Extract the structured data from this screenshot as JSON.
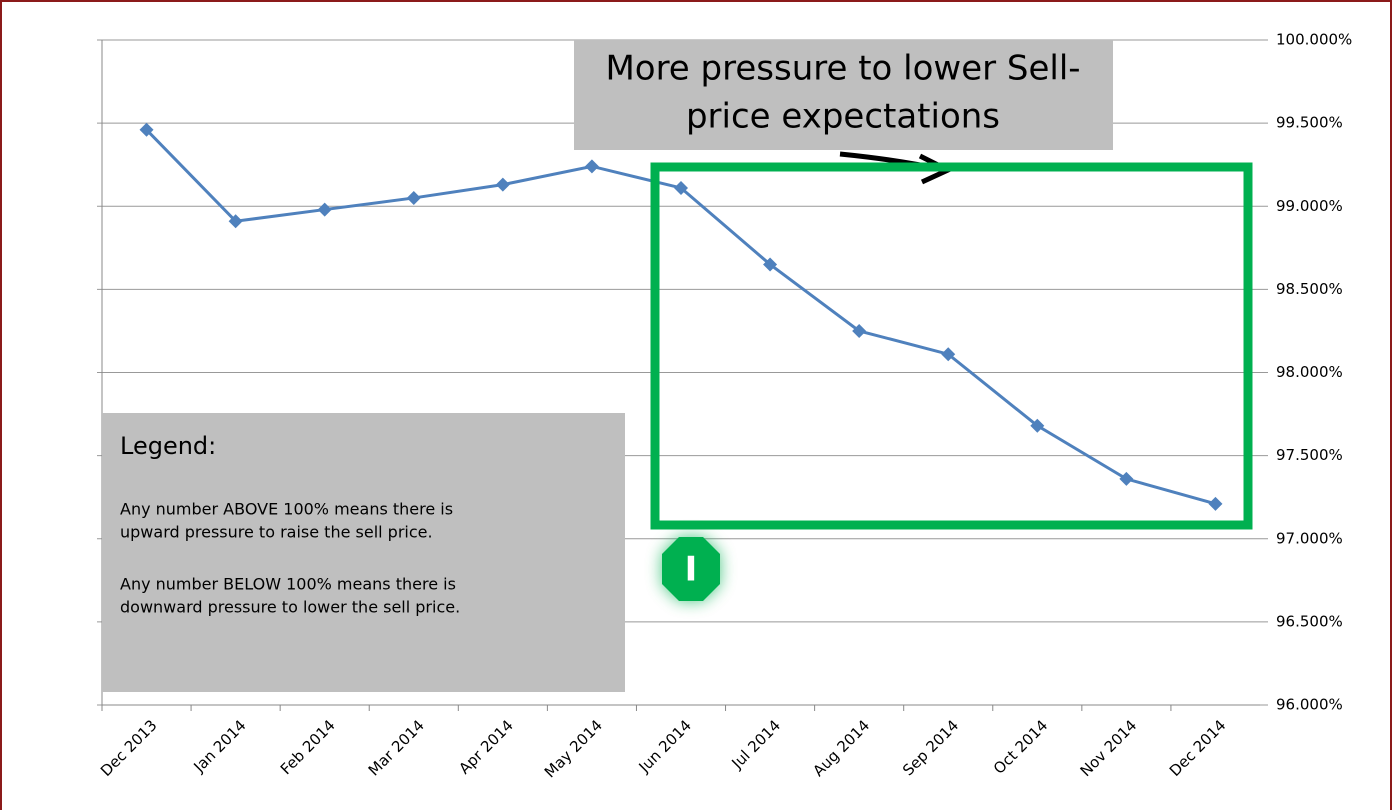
{
  "chart_data": {
    "type": "line",
    "categories": [
      "Dec 2013",
      "Jan 2014",
      "Feb 2014",
      "Mar 2014",
      "Apr 2014",
      "May 2014",
      "Jun 2014",
      "Jul 2014",
      "Aug 2014",
      "Sep 2014",
      "Oct 2014",
      "Nov 2014",
      "Dec 2014"
    ],
    "series": [
      {
        "color": "#4f81bd",
        "values": [
          99.46,
          98.91,
          98.98,
          99.05,
          99.13,
          99.24,
          99.11,
          98.65,
          98.25,
          98.11,
          97.68,
          97.36,
          97.21
        ]
      }
    ],
    "ylim": [
      96,
      100
    ],
    "yticks": [
      {
        "value": 96,
        "label": "96.000%"
      },
      {
        "value": 96.5,
        "label": "96.500%"
      },
      {
        "value": 97,
        "label": "97.000%"
      },
      {
        "value": 97.5,
        "label": "97.500%"
      },
      {
        "value": 98,
        "label": "98.000%"
      },
      {
        "value": 98.5,
        "label": "98.500%"
      },
      {
        "value": 99,
        "label": "99.000%"
      },
      {
        "value": 99.5,
        "label": "99.500%"
      },
      {
        "value": 100,
        "label": "100.000%"
      }
    ],
    "grid": true,
    "callout": {
      "lines": [
        "More pressure to lower Sell-",
        "price expectations"
      ]
    },
    "legend_box": {
      "title": "Legend:",
      "paragraphs": [
        [
          "Any number ABOVE 100% means there is",
          "upward pressure to raise the sell price."
        ],
        [
          "Any number BELOW 100% means there is",
          "downward pressure to lower the sell price."
        ]
      ]
    },
    "icon_label": "I"
  }
}
